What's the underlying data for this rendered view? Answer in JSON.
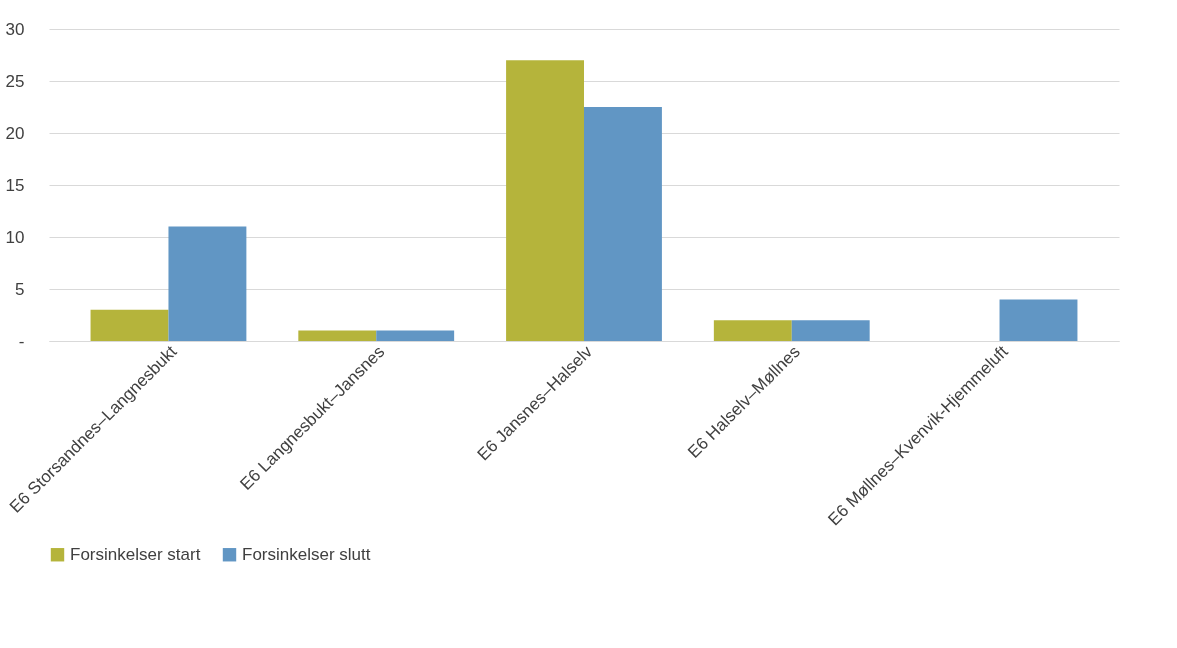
{
  "chart_data": {
    "type": "bar",
    "categories": [
      "E6 Storsandnes–Langnesbukt",
      "E6 Langnesbukt–Jansnes",
      "E6 Jansnes–Halselv",
      "E6 Halselv–Møllnes",
      "E6 Møllnes–Kvenvik-Hjemmeluft"
    ],
    "series": [
      {
        "name": "Forsinkelser start",
        "color": "#b5b43b",
        "values": [
          3,
          1,
          27,
          2,
          0
        ]
      },
      {
        "name": "Forsinkelser slutt",
        "color": "#6196c4",
        "values": [
          11,
          1,
          22.5,
          2,
          4
        ]
      }
    ],
    "ylim": [
      0,
      30
    ],
    "yticks": [
      {
        "value": 0,
        "label": "-"
      },
      5,
      10,
      15,
      20,
      25,
      30
    ],
    "grid": "y",
    "legend": "bottom"
  }
}
